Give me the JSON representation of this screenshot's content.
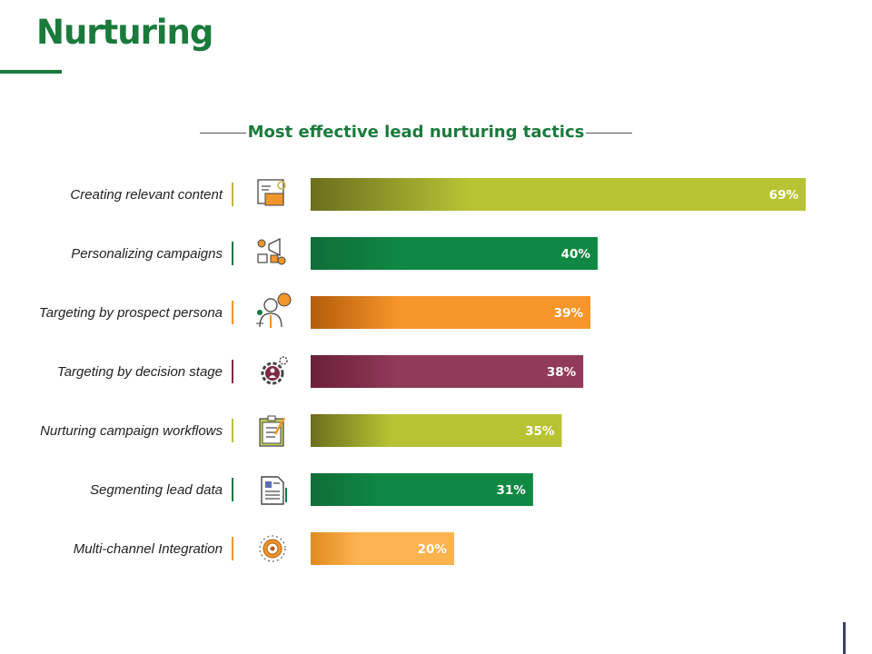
{
  "page": {
    "title": "Nurturing"
  },
  "chart_data": {
    "type": "bar",
    "orientation": "horizontal",
    "title": "Most effective lead nurturing tactics",
    "categories": [
      "Creating relevant content",
      "Personalizing campaigns",
      "Targeting by prospect persona",
      "Targeting by decision stage",
      "Nurturing campaign workflows",
      "Segmenting lead data",
      "Multi-channel Integration"
    ],
    "values": [
      69,
      40,
      39,
      38,
      35,
      31,
      20
    ],
    "value_labels": [
      "69%",
      "40%",
      "39%",
      "38%",
      "35%",
      "31%",
      "20%"
    ],
    "icons": [
      "presentation-icon",
      "marketing-tools-icon",
      "person-idea-icon",
      "gear-user-icon",
      "clipboard-checklist-icon",
      "document-icon",
      "target-gear-icon"
    ],
    "colors": [
      [
        "#6b6e1e",
        "#b8c333"
      ],
      [
        "#0f6e38",
        "#0f8843"
      ],
      [
        "#b35c0a",
        "#f7962a"
      ],
      [
        "#6a2038",
        "#913a5a"
      ],
      [
        "#6b6e1e",
        "#b8c333"
      ],
      [
        "#0f6e38",
        "#0f8843"
      ],
      [
        "#e08a1e",
        "#fbb24f"
      ]
    ],
    "accent_colors": [
      "#c8b43c",
      "#117a3e",
      "#f0962a",
      "#7e2a48",
      "#b8c333",
      "#117a3e",
      "#f0962a"
    ],
    "xlabel": "",
    "ylabel": "",
    "xlim": [
      0,
      69
    ],
    "grid": false,
    "legend": "none"
  }
}
